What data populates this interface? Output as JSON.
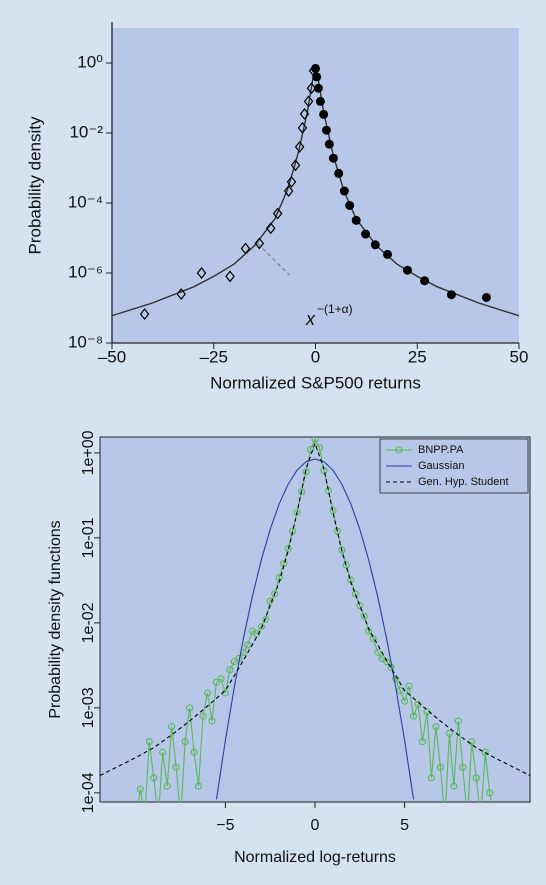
{
  "chart_data": [
    {
      "type": "scatter",
      "yscale": "log",
      "xlabel": "Normalized S&P500 returns",
      "ylabel": "Probability density",
      "xlim": [
        -50,
        50
      ],
      "ylim": [
        1e-08,
        10
      ],
      "xticks": [
        {
          "value": -50,
          "label": "–50"
        },
        {
          "value": -25,
          "label": "–25"
        },
        0,
        25,
        50
      ],
      "yticks": [
        {
          "value": 1e-08,
          "label": "10⁻⁸"
        },
        {
          "value": 1e-06,
          "label": "10⁻⁶"
        },
        {
          "value": 0.0001,
          "label": "10⁻⁴"
        },
        {
          "value": 0.01,
          "label": "10⁻²"
        },
        {
          "value": 1,
          "label": "10⁰"
        }
      ],
      "annotation": {
        "base": "x",
        "exponent": "−(1+α)"
      },
      "series": [
        {
          "color": "#333333",
          "line": "solid",
          "x": [
            -50,
            -40,
            -30,
            -25,
            -20,
            -15,
            -10,
            -7,
            -5,
            -4,
            -3,
            -2,
            -1,
            -0.5,
            0,
            0.5,
            1,
            2,
            3,
            4,
            5,
            7,
            10,
            15,
            20,
            25,
            30,
            40,
            50
          ],
          "values": [
            6e-08,
            1.4e-07,
            4e-07,
            8e-07,
            1.8e-06,
            6e-06,
            3.5e-05,
            0.00022,
            0.0013,
            0.0035,
            0.012,
            0.04,
            0.2,
            0.45,
            0.8,
            0.45,
            0.2,
            0.04,
            0.012,
            0.0035,
            0.0013,
            0.00022,
            3.5e-05,
            6e-06,
            1.8e-06,
            8e-07,
            4e-07,
            1.4e-07,
            6e-08
          ]
        },
        {
          "color": "#8a8a8a",
          "line": "dashed",
          "x": [
            -14.2,
            -6.4
          ],
          "values": [
            7e-06,
            8.7e-07
          ]
        },
        {
          "color": "#000000",
          "marker": "diamond-open",
          "x": [
            -0.5,
            -1,
            -1.7,
            -2.7,
            -3.2,
            -3.9,
            -4.9,
            -5.9,
            -6.6,
            -9.3,
            -11,
            -13.8,
            -17.2,
            -21,
            -28,
            -33,
            -42
          ],
          "values": [
            0.6,
            0.19,
            0.08,
            0.035,
            0.014,
            0.004,
            0.0012,
            0.0004,
            0.00022,
            5e-05,
            1.9e-05,
            7e-06,
            5e-06,
            8e-07,
            1e-06,
            2.5e-07,
            6.7e-08
          ]
        },
        {
          "color": "#000000",
          "marker": "circle-filled",
          "x": [
            0,
            0.3,
            0.7,
            1.2,
            2,
            2.7,
            3.4,
            4.4,
            5.7,
            7.1,
            8.4,
            10,
            12.3,
            14.7,
            17.7,
            22.6,
            26.8,
            33.4,
            42
          ],
          "values": [
            0.7,
            0.4,
            0.19,
            0.08,
            0.034,
            0.012,
            0.0048,
            0.0019,
            0.0007,
            0.00022,
            8.5e-05,
            3.2e-05,
            1.3e-05,
            6.4e-06,
            3.4e-06,
            1.2e-06,
            6e-07,
            2.4e-07,
            2e-07
          ]
        }
      ]
    },
    {
      "type": "line",
      "yscale": "log",
      "legend": "upper right",
      "xlabel": "Normalized log-returns",
      "ylabel": "Probability density functions",
      "xlim": [
        -12,
        12
      ],
      "ylim": [
        7.8e-05,
        1.54
      ],
      "xticks": [
        {
          "value": -5,
          "label": "−5"
        },
        0,
        5
      ],
      "yticks": [
        {
          "value": 0.0001,
          "label": "1e-04"
        },
        {
          "value": 0.001,
          "label": "1e-03"
        },
        {
          "value": 0.01,
          "label": "1e-02"
        },
        {
          "value": 0.1,
          "label": "1e-01"
        },
        {
          "value": 1,
          "label": "1e+00"
        }
      ],
      "series": [
        {
          "name": "BNPP.PA",
          "color": "#5cb85c",
          "line": "solid",
          "marker": "circle-open",
          "x": [
            -10,
            -9.75,
            -9.5,
            -9.25,
            -9,
            -8.75,
            -8.5,
            -8.25,
            -8,
            -7.75,
            -7.5,
            -7.25,
            -7,
            -6.75,
            -6.5,
            -6.25,
            -6,
            -5.75,
            -5.5,
            -5.25,
            -5,
            -4.75,
            -4.5,
            -4.25,
            -4,
            -3.75,
            -3.5,
            -3.25,
            -3,
            -2.75,
            -2.5,
            -2.25,
            -2,
            -1.75,
            -1.5,
            -1.25,
            -1,
            -0.75,
            -0.5,
            -0.25,
            0,
            0.25,
            0.5,
            0.75,
            1,
            1.25,
            1.5,
            1.75,
            2,
            2.25,
            2.5,
            2.75,
            3,
            3.25,
            3.5,
            3.75,
            4,
            4.25,
            4.5,
            4.75,
            5,
            5.25,
            5.5,
            5.75,
            6,
            6.25,
            6.5,
            6.75,
            7,
            7.25,
            7.5,
            7.75,
            8,
            8.25,
            8.5,
            8.75,
            9,
            9.25,
            9.5,
            9.75,
            10
          ],
          "values": [
            5e-05,
            0.00011,
            5e-05,
            0.0004,
            0.00015,
            5e-05,
            0.0003,
            0.00012,
            0.0006,
            0.0002,
            5e-05,
            0.0004,
            0.001,
            0.0003,
            0.00012,
            0.0008,
            0.0015,
            0.0007,
            0.002,
            0.0022,
            0.0015,
            0.0028,
            0.0035,
            0.0038,
            0.0045,
            0.0055,
            0.008,
            0.0075,
            0.009,
            0.011,
            0.018,
            0.022,
            0.034,
            0.05,
            0.075,
            0.12,
            0.2,
            0.35,
            0.6,
            1.1,
            1.45,
            1.15,
            0.62,
            0.36,
            0.21,
            0.12,
            0.072,
            0.048,
            0.032,
            0.022,
            0.016,
            0.012,
            0.008,
            0.0065,
            0.0045,
            0.0038,
            0.0035,
            0.003,
            0.0022,
            0.0016,
            0.0012,
            0.0018,
            0.0008,
            0.0011,
            0.0004,
            0.0009,
            0.00015,
            0.0006,
            0.0002,
            5e-05,
            0.0005,
            0.00012,
            0.0007,
            0.0002,
            5e-05,
            0.0004,
            0.00015,
            5e-05,
            0.0003,
            0.0001,
            5e-05
          ]
        },
        {
          "name": "Gaussian",
          "color": "#2a3fa8",
          "line": "solid",
          "x": [
            -5.5,
            -5,
            -4.5,
            -4,
            -3.5,
            -3,
            -2.5,
            -2,
            -1.5,
            -1,
            -0.5,
            0,
            0.5,
            1,
            1.5,
            2,
            2.5,
            3,
            3.5,
            4,
            4.5,
            5,
            5.5
          ],
          "values": [
            8.4e-05,
            0.000416,
            0.00177,
            0.00648,
            0.0203,
            0.0547,
            0.1266,
            0.251,
            0.428,
            0.627,
            0.788,
            0.85,
            0.788,
            0.627,
            0.428,
            0.251,
            0.1266,
            0.0547,
            0.0203,
            0.00648,
            0.00177,
            0.000416,
            8.4e-05
          ]
        },
        {
          "name": "Gen. Hyp. Student",
          "color": "#000000",
          "line": "dashed",
          "x": [
            -12,
            -10,
            -9,
            -8,
            -7,
            -6,
            -5,
            -4,
            -3,
            -2.5,
            -2,
            -1.5,
            -1,
            -0.5,
            0,
            0.5,
            1,
            1.5,
            2,
            2.5,
            3,
            4,
            5,
            6,
            7,
            8,
            9,
            10,
            12
          ],
          "values": [
            0.00016,
            0.00026,
            0.00034,
            0.00048,
            0.0007,
            0.00105,
            0.0016,
            0.0036,
            0.0085,
            0.016,
            0.03,
            0.07,
            0.2,
            0.65,
            1.3,
            0.65,
            0.2,
            0.07,
            0.03,
            0.016,
            0.0085,
            0.0036,
            0.0016,
            0.00105,
            0.0007,
            0.00048,
            0.00034,
            0.00026,
            0.00016
          ]
        }
      ]
    }
  ]
}
